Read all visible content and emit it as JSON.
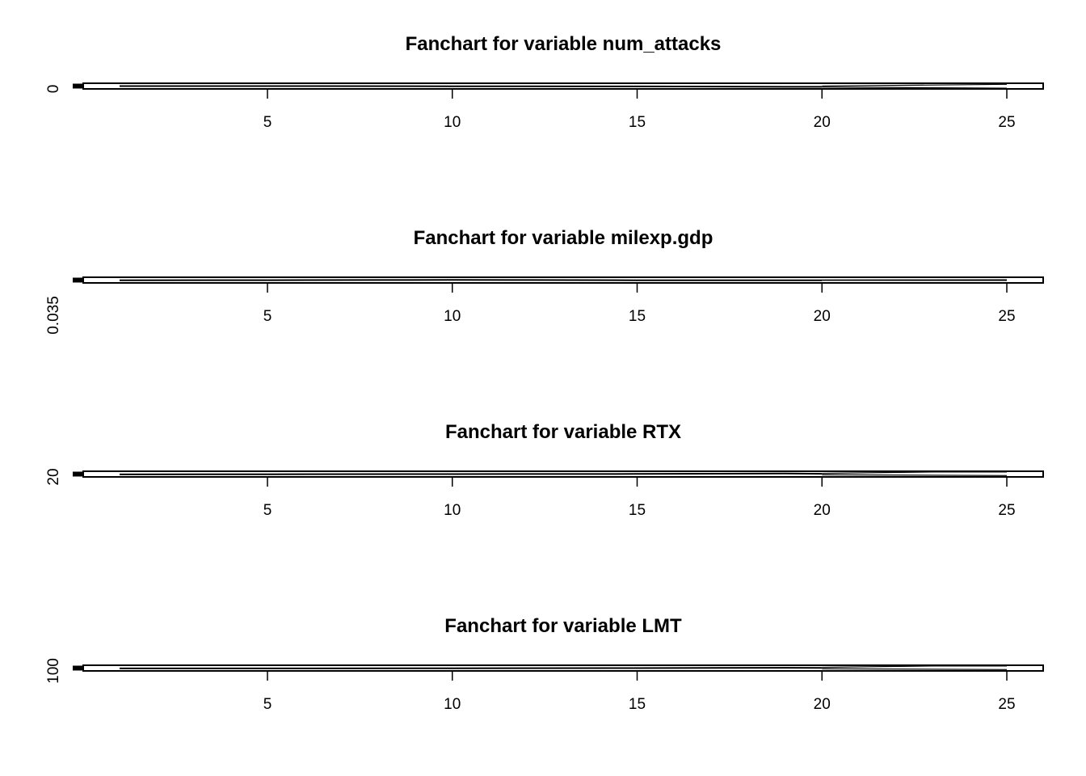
{
  "chart_data": [
    {
      "type": "line",
      "title": "Fanchart for variable num_attacks",
      "xlim": [
        0,
        26
      ],
      "x_ticks": [
        5,
        10,
        15,
        20,
        25
      ],
      "y_ticks": [
        "0"
      ],
      "ylim": [
        -0.8,
        0.8
      ],
      "history": [
        {
          "x": 0,
          "y": 0.0
        },
        {
          "x": 0.3,
          "y": 0.0
        }
      ],
      "series": [
        {
          "x": [
            1,
            5,
            10,
            15,
            19,
            20
          ],
          "values": [
            0.0,
            0.0,
            -0.05,
            -0.1,
            -0.2,
            -0.2
          ]
        }
      ],
      "fan_upper": [
        {
          "x": 20,
          "y": 0.0
        },
        {
          "x": 25,
          "y": 0.5
        }
      ],
      "fan_lower": [
        {
          "x": 20,
          "y": -0.3
        },
        {
          "x": 25,
          "y": -0.6
        }
      ]
    },
    {
      "type": "line",
      "title": "Fanchart for variable milexp.gdp",
      "xlim": [
        0,
        26
      ],
      "x_ticks": [
        5,
        10,
        15,
        20,
        25
      ],
      "y_ticks": [
        "0.035"
      ],
      "ylim": [
        0.0345,
        0.0355
      ],
      "history": [
        {
          "x": 0,
          "y": 0.035
        },
        {
          "x": 0.3,
          "y": 0.035
        }
      ],
      "series": [
        {
          "x": [
            1,
            5,
            8,
            10,
            12,
            15,
            20
          ],
          "values": [
            0.03495,
            0.03498,
            0.03502,
            0.03503,
            0.03502,
            0.03497,
            0.03496
          ]
        }
      ],
      "fan_upper": [
        {
          "x": 20,
          "y": 0.03502
        },
        {
          "x": 22,
          "y": 0.03504
        },
        {
          "x": 25,
          "y": 0.03506
        }
      ],
      "fan_lower": [
        {
          "x": 20,
          "y": 0.03495
        },
        {
          "x": 25,
          "y": 0.03494
        }
      ]
    },
    {
      "type": "line",
      "title": "Fanchart for variable RTX",
      "xlim": [
        0,
        26
      ],
      "x_ticks": [
        5,
        10,
        15,
        20,
        25
      ],
      "y_ticks": [
        "20"
      ],
      "ylim": [
        19.2,
        20.8
      ],
      "history": [
        {
          "x": 0,
          "y": 20.0
        },
        {
          "x": 0.3,
          "y": 20.0
        }
      ],
      "series": [
        {
          "x": [
            1,
            5,
            10,
            15,
            19,
            20
          ],
          "values": [
            19.9,
            19.95,
            20.0,
            20.05,
            20.15,
            20.1
          ]
        }
      ],
      "fan_upper": [
        {
          "x": 20,
          "y": 20.2
        },
        {
          "x": 23,
          "y": 20.6
        },
        {
          "x": 25,
          "y": 20.6
        }
      ],
      "fan_lower": [
        {
          "x": 20,
          "y": 19.8
        },
        {
          "x": 25,
          "y": 19.6
        }
      ]
    },
    {
      "type": "line",
      "title": "Fanchart for variable LMT",
      "xlim": [
        0,
        26
      ],
      "x_ticks": [
        5,
        10,
        15,
        20,
        25
      ],
      "y_ticks": [
        "100"
      ],
      "ylim": [
        99.2,
        100.8
      ],
      "history": [
        {
          "x": 0,
          "y": 100.0
        },
        {
          "x": 0.3,
          "y": 100.0
        }
      ],
      "series": [
        {
          "x": [
            1,
            5,
            10,
            15,
            19,
            20
          ],
          "values": [
            99.9,
            99.92,
            99.95,
            100.0,
            100.1,
            100.05
          ]
        }
      ],
      "fan_upper": [
        {
          "x": 20,
          "y": 100.2
        },
        {
          "x": 23,
          "y": 100.6
        },
        {
          "x": 25,
          "y": 100.6
        }
      ],
      "fan_lower": [
        {
          "x": 20,
          "y": 99.8
        },
        {
          "x": 25,
          "y": 99.6
        }
      ]
    }
  ]
}
